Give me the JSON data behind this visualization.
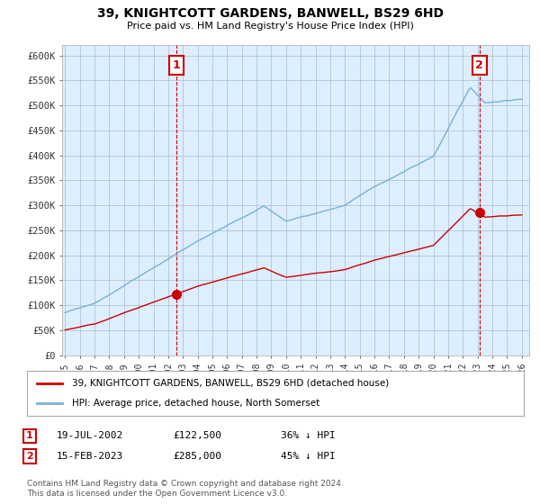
{
  "title": "39, KNIGHTCOTT GARDENS, BANWELL, BS29 6HD",
  "subtitle": "Price paid vs. HM Land Registry's House Price Index (HPI)",
  "legend_line1": "39, KNIGHTCOTT GARDENS, BANWELL, BS29 6HD (detached house)",
  "legend_line2": "HPI: Average price, detached house, North Somerset",
  "sale1_date": "19-JUL-2002",
  "sale1_price": "£122,500",
  "sale1_pct": "36% ↓ HPI",
  "sale1_year": 2002.54,
  "sale1_value": 122500,
  "sale2_date": "15-FEB-2023",
  "sale2_price": "£285,000",
  "sale2_pct": "45% ↓ HPI",
  "sale2_year": 2023.12,
  "sale2_value": 285000,
  "ylim": [
    0,
    620000
  ],
  "xlim": [
    1994.8,
    2026.5
  ],
  "yticks": [
    0,
    50000,
    100000,
    150000,
    200000,
    250000,
    300000,
    350000,
    400000,
    450000,
    500000,
    550000,
    600000
  ],
  "ytick_labels": [
    "£0",
    "£50K",
    "£100K",
    "£150K",
    "£200K",
    "£250K",
    "£300K",
    "£350K",
    "£400K",
    "£450K",
    "£500K",
    "£550K",
    "£600K"
  ],
  "xticks": [
    1995,
    1996,
    1997,
    1998,
    1999,
    2000,
    2001,
    2002,
    2003,
    2004,
    2005,
    2006,
    2007,
    2008,
    2009,
    2010,
    2011,
    2012,
    2013,
    2014,
    2015,
    2016,
    2017,
    2018,
    2019,
    2020,
    2021,
    2022,
    2023,
    2024,
    2025,
    2026
  ],
  "red_color": "#cc0000",
  "blue_color": "#7ab0d4",
  "chart_bg": "#ddeeff",
  "grid_color": "#aabbcc",
  "bg_color": "#ffffff",
  "footnote": "Contains HM Land Registry data © Crown copyright and database right 2024.\nThis data is licensed under the Open Government Licence v3.0."
}
